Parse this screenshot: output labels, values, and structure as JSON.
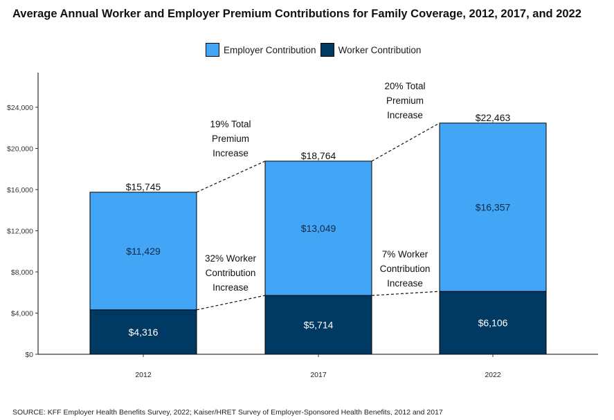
{
  "colors": {
    "employer": "#42a5f5",
    "worker": "#003a63"
  },
  "legend": {
    "employer_label": "Employer Contribution",
    "worker_label": "Worker Contribution"
  },
  "source": "SOURCE: KFF Employer Health Benefits Survey, 2022; Kaiser/HRET Survey of Employer-Sponsored Health Benefits, 2012 and 2017",
  "chart_data": {
    "type": "bar",
    "stacked": true,
    "title": "Average Annual Worker and Employer Premium Contributions for Family Coverage, 2012, 2017, and 2022",
    "xlabel": "",
    "ylabel": "",
    "categories": [
      "2012",
      "2017",
      "2022"
    ],
    "series": [
      {
        "name": "Worker Contribution",
        "values": [
          4316,
          5714,
          6106
        ],
        "labels": [
          "$4,316",
          "$5,714",
          "$6,106"
        ]
      },
      {
        "name": "Employer Contribution",
        "values": [
          11429,
          13049,
          16357
        ],
        "labels": [
          "$11,429",
          "$13,049",
          "$16,357"
        ]
      }
    ],
    "totals": [
      15745,
      18764,
      22463
    ],
    "total_labels": [
      "$15,745",
      "$18,764",
      "$22,463"
    ],
    "ylim": [
      0,
      24000
    ],
    "yticks": [
      0,
      4000,
      8000,
      12000,
      16000,
      20000,
      24000
    ],
    "ytick_labels": [
      "$0",
      "$4,000",
      "$8,000",
      "$12,000",
      "$16,000",
      "$20,000",
      "$24,000"
    ],
    "grid": false,
    "legend_position": "top",
    "annotations": [
      {
        "lines": [
          "19% Total",
          "Premium",
          "Increase"
        ]
      },
      {
        "lines": [
          "20% Total",
          "Premium",
          "Increase"
        ]
      },
      {
        "lines": [
          "32% Worker",
          "Contribution",
          "Increase"
        ]
      },
      {
        "lines": [
          "7% Worker",
          "Contribution",
          "Increase"
        ]
      }
    ]
  }
}
